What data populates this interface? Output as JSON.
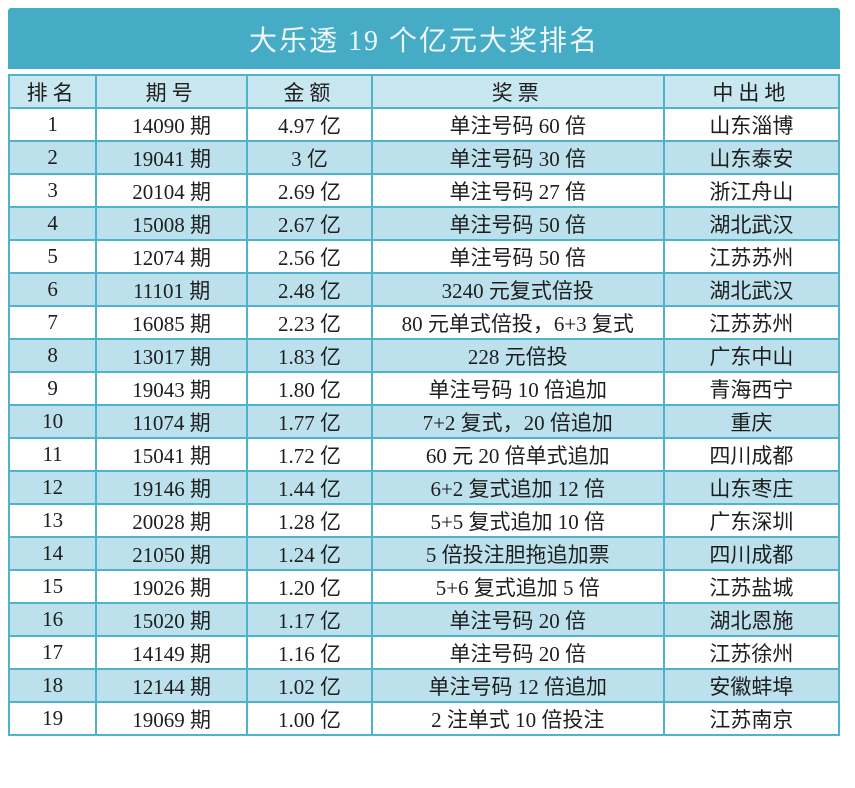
{
  "title": "大乐透 19 个亿元大奖排名",
  "columns": [
    "排名",
    "期号",
    "金额",
    "奖票",
    "中出地"
  ],
  "column_keys": [
    "rank",
    "period",
    "amount",
    "ticket",
    "place"
  ],
  "rows": [
    [
      "1",
      "14090 期",
      "4.97 亿",
      "单注号码 60 倍",
      "山东淄博"
    ],
    [
      "2",
      "19041 期",
      "3 亿",
      "单注号码 30 倍",
      "山东泰安"
    ],
    [
      "3",
      "20104 期",
      "2.69 亿",
      "单注号码 27 倍",
      "浙江舟山"
    ],
    [
      "4",
      "15008 期",
      "2.67 亿",
      "单注号码 50 倍",
      "湖北武汉"
    ],
    [
      "5",
      "12074 期",
      "2.56 亿",
      "单注号码 50 倍",
      "江苏苏州"
    ],
    [
      "6",
      "11101 期",
      "2.48 亿",
      "3240 元复式倍投",
      "湖北武汉"
    ],
    [
      "7",
      "16085 期",
      "2.23 亿",
      "80 元单式倍投，6+3 复式",
      "江苏苏州"
    ],
    [
      "8",
      "13017 期",
      "1.83 亿",
      "228 元倍投",
      "广东中山"
    ],
    [
      "9",
      "19043 期",
      "1.80 亿",
      "单注号码 10 倍追加",
      "青海西宁"
    ],
    [
      "10",
      "11074 期",
      "1.77 亿",
      "7+2 复式，20 倍追加",
      "重庆"
    ],
    [
      "11",
      "15041 期",
      "1.72 亿",
      "60 元 20 倍单式追加",
      "四川成都"
    ],
    [
      "12",
      "19146 期",
      "1.44 亿",
      "6+2 复式追加 12 倍",
      "山东枣庄"
    ],
    [
      "13",
      "20028 期",
      "1.28 亿",
      "5+5 复式追加 10 倍",
      "广东深圳"
    ],
    [
      "14",
      "21050 期",
      "1.24 亿",
      "5 倍投注胆拖追加票",
      "四川成都"
    ],
    [
      "15",
      "19026 期",
      "1.20 亿",
      "5+6 复式追加 5 倍",
      "江苏盐城"
    ],
    [
      "16",
      "15020 期",
      "1.17 亿",
      "单注号码 20 倍",
      "湖北恩施"
    ],
    [
      "17",
      "14149 期",
      "1.16 亿",
      "单注号码 20 倍",
      "江苏徐州"
    ],
    [
      "18",
      "12144 期",
      "1.02 亿",
      "单注号码 12 倍追加",
      "安徽蚌埠"
    ],
    [
      "19",
      "19069 期",
      "1.00 亿",
      "2 注单式 10 倍投注",
      "江苏南京"
    ]
  ],
  "colors": {
    "header_band": "#46abc4",
    "grid_border": "#4fb4cb",
    "header_row_bg": "#c9e7f1",
    "row_alt_bg": "#bce1ed",
    "row_bg": "#ffffff",
    "title_text": "#eef8fb",
    "cell_text": "#1e1e1e"
  }
}
